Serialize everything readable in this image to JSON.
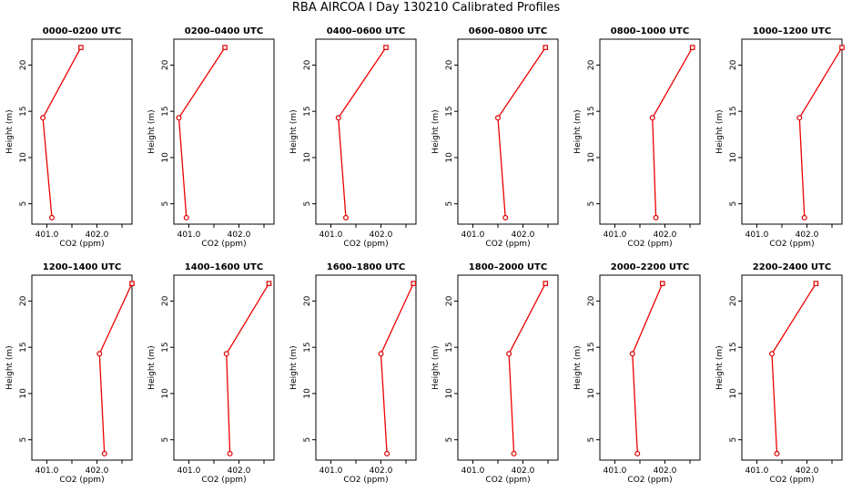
{
  "title": "RBA AIRCOA I  Day 130210  Calibrated Profiles",
  "chart_data": [
    {
      "type": "line",
      "title": "0000–0200 UTC",
      "xlabel": "CO2 (ppm)",
      "ylabel": "Height (m)",
      "xlim": [
        400.7,
        402.7
      ],
      "ylim": [
        2.8,
        22.8
      ],
      "xticks": [
        401.0,
        401.5,
        402.0,
        402.5
      ],
      "xtick_labels": [
        "401.0",
        "",
        "402.0",
        ""
      ],
      "yticks": [
        5,
        10,
        15,
        20
      ],
      "x": [
        401.1,
        400.92,
        401.68
      ],
      "y": [
        3.5,
        14.3,
        21.9
      ]
    },
    {
      "type": "line",
      "title": "0200–0400 UTC",
      "xlabel": "CO2 (ppm)",
      "ylabel": "Height (m)",
      "xlim": [
        400.7,
        402.7
      ],
      "ylim": [
        2.8,
        22.8
      ],
      "xticks": [
        401.0,
        401.5,
        402.0,
        402.5
      ],
      "xtick_labels": [
        "401.0",
        "",
        "402.0",
        ""
      ],
      "yticks": [
        5,
        10,
        15,
        20
      ],
      "x": [
        400.95,
        400.8,
        401.72
      ],
      "y": [
        3.5,
        14.3,
        21.9
      ]
    },
    {
      "type": "line",
      "title": "0400–0600 UTC",
      "xlabel": "CO2 (ppm)",
      "ylabel": "Height (m)",
      "xlim": [
        400.7,
        402.7
      ],
      "ylim": [
        2.8,
        22.8
      ],
      "xticks": [
        401.0,
        401.5,
        402.0,
        402.5
      ],
      "xtick_labels": [
        "401.0",
        "",
        "402.0",
        ""
      ],
      "yticks": [
        5,
        10,
        15,
        20
      ],
      "x": [
        401.3,
        401.15,
        402.1
      ],
      "y": [
        3.5,
        14.3,
        21.9
      ]
    },
    {
      "type": "line",
      "title": "0600–0800 UTC",
      "xlabel": "CO2 (ppm)",
      "ylabel": "Height (m)",
      "xlim": [
        400.7,
        402.7
      ],
      "ylim": [
        2.8,
        22.8
      ],
      "xticks": [
        401.0,
        401.5,
        402.0,
        402.5
      ],
      "xtick_labels": [
        "401.0",
        "",
        "402.0",
        ""
      ],
      "yticks": [
        5,
        10,
        15,
        20
      ],
      "x": [
        401.65,
        401.5,
        402.45
      ],
      "y": [
        3.5,
        14.3,
        21.9
      ]
    },
    {
      "type": "line",
      "title": "0800–1000 UTC",
      "xlabel": "CO2 (ppm)",
      "ylabel": "Height (m)",
      "xlim": [
        400.7,
        402.7
      ],
      "ylim": [
        2.8,
        22.8
      ],
      "xticks": [
        401.0,
        401.5,
        402.0,
        402.5
      ],
      "xtick_labels": [
        "401.0",
        "",
        "402.0",
        ""
      ],
      "yticks": [
        5,
        10,
        15,
        20
      ],
      "x": [
        401.82,
        401.75,
        402.55
      ],
      "y": [
        3.5,
        14.3,
        21.9
      ]
    },
    {
      "type": "line",
      "title": "1000–1200 UTC",
      "xlabel": "CO2 (ppm)",
      "ylabel": "Height (m)",
      "xlim": [
        400.7,
        402.7
      ],
      "ylim": [
        2.8,
        22.8
      ],
      "xticks": [
        401.0,
        401.5,
        402.0,
        402.5
      ],
      "xtick_labels": [
        "401.0",
        "",
        "402.0",
        ""
      ],
      "yticks": [
        5,
        10,
        15,
        20
      ],
      "x": [
        401.95,
        401.85,
        402.7
      ],
      "y": [
        3.5,
        14.3,
        21.9
      ]
    },
    {
      "type": "line",
      "title": "1200–1400 UTC",
      "xlabel": "CO2 (ppm)",
      "ylabel": "Height (m)",
      "xlim": [
        400.7,
        402.7
      ],
      "ylim": [
        2.8,
        22.8
      ],
      "xticks": [
        401.0,
        401.5,
        402.0,
        402.5
      ],
      "xtick_labels": [
        "401.0",
        "",
        "402.0",
        ""
      ],
      "yticks": [
        5,
        10,
        15,
        20
      ],
      "x": [
        402.15,
        402.05,
        402.7
      ],
      "y": [
        3.5,
        14.3,
        21.9
      ]
    },
    {
      "type": "line",
      "title": "1400–1600 UTC",
      "xlabel": "CO2 (ppm)",
      "ylabel": "Height (m)",
      "xlim": [
        400.7,
        402.7
      ],
      "ylim": [
        2.8,
        22.8
      ],
      "xticks": [
        401.0,
        401.5,
        402.0,
        402.5
      ],
      "xtick_labels": [
        "401.0",
        "",
        "402.0",
        ""
      ],
      "yticks": [
        5,
        10,
        15,
        20
      ],
      "x": [
        401.82,
        401.75,
        402.6
      ],
      "y": [
        3.5,
        14.3,
        21.9
      ]
    },
    {
      "type": "line",
      "title": "1600–1800 UTC",
      "xlabel": "CO2 (ppm)",
      "ylabel": "Height (m)",
      "xlim": [
        400.7,
        402.7
      ],
      "ylim": [
        2.8,
        22.8
      ],
      "xticks": [
        401.0,
        401.5,
        402.0,
        402.5
      ],
      "xtick_labels": [
        "401.0",
        "",
        "402.0",
        ""
      ],
      "yticks": [
        5,
        10,
        15,
        20
      ],
      "x": [
        402.12,
        402.0,
        402.65
      ],
      "y": [
        3.5,
        14.3,
        21.9
      ]
    },
    {
      "type": "line",
      "title": "1800–2000 UTC",
      "xlabel": "CO2 (ppm)",
      "ylabel": "Height (m)",
      "xlim": [
        400.7,
        402.7
      ],
      "ylim": [
        2.8,
        22.8
      ],
      "xticks": [
        401.0,
        401.5,
        402.0,
        402.5
      ],
      "xtick_labels": [
        "401.0",
        "",
        "402.0",
        ""
      ],
      "yticks": [
        5,
        10,
        15,
        20
      ],
      "x": [
        401.82,
        401.72,
        402.45
      ],
      "y": [
        3.5,
        14.3,
        21.9
      ]
    },
    {
      "type": "line",
      "title": "2000–2200 UTC",
      "xlabel": "CO2 (ppm)",
      "ylabel": "Height (m)",
      "xlim": [
        400.7,
        402.7
      ],
      "ylim": [
        2.8,
        22.8
      ],
      "xticks": [
        401.0,
        401.5,
        402.0,
        402.5
      ],
      "xtick_labels": [
        "401.0",
        "",
        "402.0",
        ""
      ],
      "yticks": [
        5,
        10,
        15,
        20
      ],
      "x": [
        401.45,
        401.35,
        401.95
      ],
      "y": [
        3.5,
        14.3,
        21.9
      ]
    },
    {
      "type": "line",
      "title": "2200–2400 UTC",
      "xlabel": "CO2 (ppm)",
      "ylabel": "Height (m)",
      "xlim": [
        400.7,
        402.7
      ],
      "ylim": [
        2.8,
        22.8
      ],
      "xticks": [
        401.0,
        401.5,
        402.0,
        402.5
      ],
      "xtick_labels": [
        "401.0",
        "",
        "402.0",
        ""
      ],
      "yticks": [
        5,
        10,
        15,
        20
      ],
      "x": [
        401.4,
        401.3,
        402.18
      ],
      "y": [
        3.5,
        14.3,
        21.9
      ]
    }
  ],
  "colors": {
    "series": "#ee0000",
    "marker": "#dd0000",
    "axis": "#000000"
  }
}
